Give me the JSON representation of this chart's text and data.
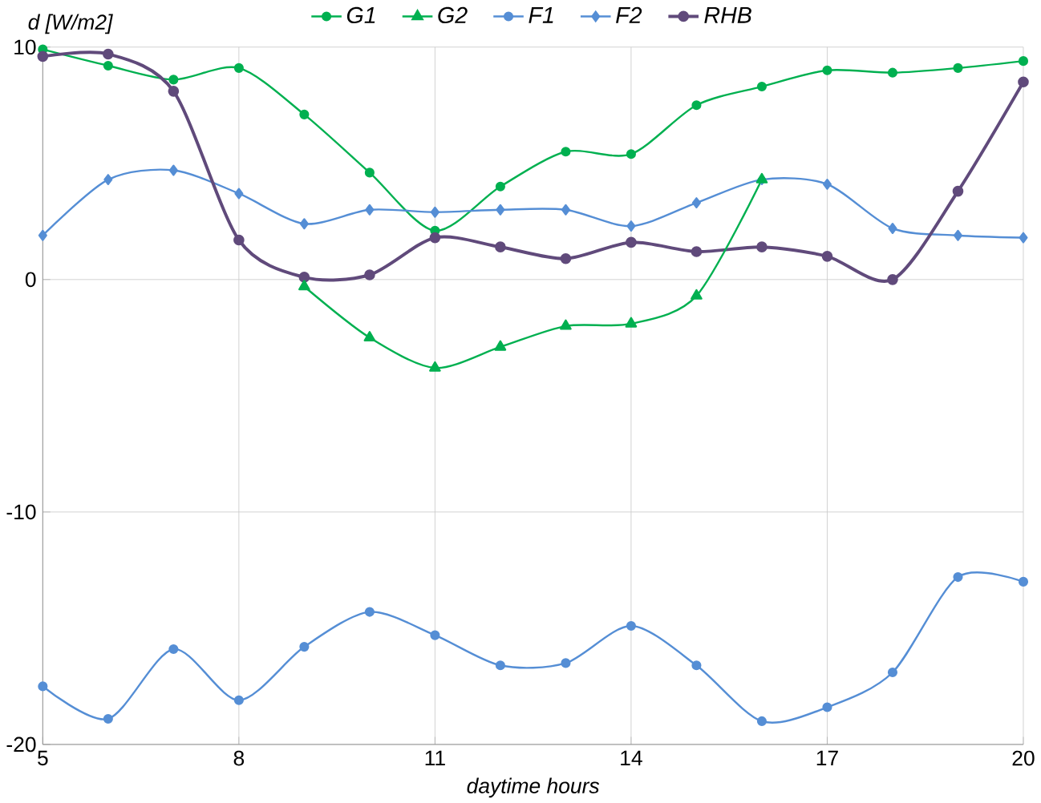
{
  "chart_data": {
    "type": "line",
    "ylabel": "d [W/m2]",
    "xlabel": "daytime hours",
    "x": [
      5,
      6,
      7,
      8,
      9,
      10,
      11,
      12,
      13,
      14,
      15,
      16,
      17,
      18,
      19,
      20
    ],
    "xlim": [
      5,
      20
    ],
    "xticks": [
      5,
      8,
      11,
      14,
      17,
      20
    ],
    "ylim": [
      -20,
      10
    ],
    "yticks": [
      -20,
      -10,
      0,
      10
    ],
    "grid": true,
    "legend": "top",
    "series": [
      {
        "name": "G1",
        "color": "#00b050",
        "marker": "circle",
        "values": [
          9.9,
          9.2,
          8.6,
          9.1,
          7.1,
          4.6,
          2.1,
          4.0,
          5.5,
          5.4,
          7.5,
          8.3,
          9.0,
          8.9,
          9.1,
          9.4
        ]
      },
      {
        "name": "G2",
        "color": "#00b050",
        "marker": "triangle",
        "x": [
          9,
          10,
          11,
          12,
          13,
          14,
          15,
          16
        ],
        "values": [
          -0.3,
          -2.5,
          -3.8,
          -2.9,
          -2.0,
          -1.9,
          -0.7,
          4.3
        ]
      },
      {
        "name": "F1",
        "color": "#558ed5",
        "marker": "circle",
        "values": [
          -17.5,
          -18.9,
          -15.9,
          -18.1,
          -15.8,
          -14.3,
          -15.3,
          -16.6,
          -16.5,
          -14.9,
          -16.6,
          -19.0,
          -18.4,
          -16.9,
          -12.8,
          -13.0
        ]
      },
      {
        "name": "F2",
        "color": "#558ed5",
        "marker": "diamond",
        "values": [
          1.9,
          4.3,
          4.7,
          3.7,
          2.4,
          3.0,
          2.9,
          3.0,
          3.0,
          2.3,
          3.3,
          4.3,
          4.1,
          2.2,
          1.9,
          1.8
        ]
      },
      {
        "name": "RHB",
        "color": "#604a7b",
        "marker": "circle",
        "values": [
          9.6,
          9.7,
          8.1,
          1.7,
          0.1,
          0.2,
          1.8,
          1.4,
          0.9,
          1.6,
          1.2,
          1.4,
          1.0,
          0.0,
          3.8,
          8.5
        ]
      }
    ]
  }
}
